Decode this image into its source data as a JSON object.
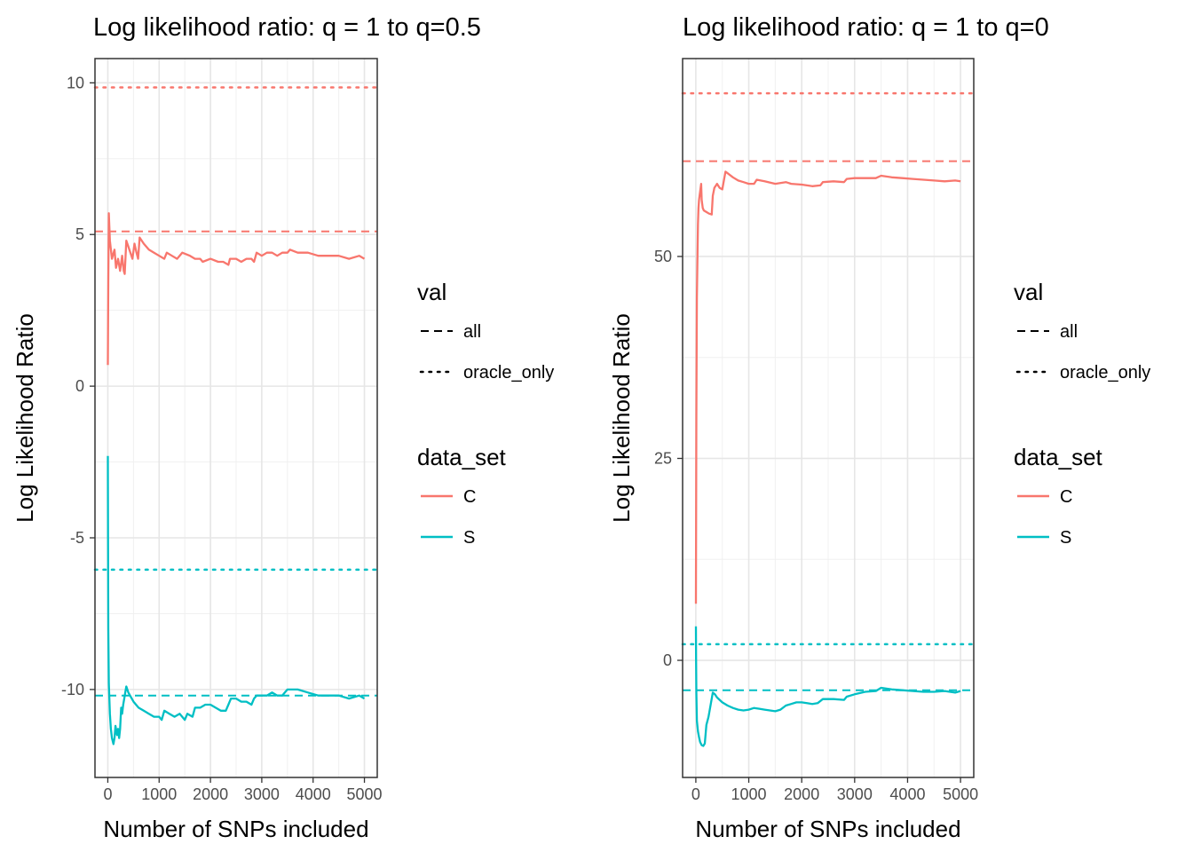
{
  "chart_data": [
    {
      "type": "line",
      "title": "Log likelihood ratio: q = 1 to q=0.5",
      "xlabel": "Number of SNPs included",
      "ylabel": "Log Likelihood Ratio",
      "xlim": [
        -250,
        5250
      ],
      "ylim": [
        -12.9,
        10.8
      ],
      "xticks": [
        0,
        1000,
        2000,
        3000,
        4000,
        5000
      ],
      "xtick_labels": [
        "0",
        "1000",
        "2000",
        "3000",
        "4000",
        "5000"
      ],
      "yticks": [
        -10,
        -5,
        0,
        5,
        10
      ],
      "ytick_labels": [
        "-10",
        "-5",
        "0",
        "5",
        "10"
      ],
      "grid": true,
      "legend_position": "right",
      "series": [
        {
          "name": "C",
          "color": "#F8766D",
          "points": [
            [
              1,
              0.7
            ],
            [
              10,
              3.5
            ],
            [
              20,
              5.7
            ],
            [
              40,
              4.8
            ],
            [
              80,
              4.2
            ],
            [
              130,
              4.5
            ],
            [
              160,
              3.9
            ],
            [
              200,
              4.2
            ],
            [
              240,
              3.8
            ],
            [
              280,
              4.3
            ],
            [
              310,
              3.8
            ],
            [
              330,
              3.7
            ],
            [
              360,
              4.8
            ],
            [
              400,
              4.6
            ],
            [
              440,
              4.4
            ],
            [
              480,
              4.2
            ],
            [
              520,
              4.7
            ],
            [
              560,
              4.4
            ],
            [
              590,
              4.2
            ],
            [
              620,
              4.9
            ],
            [
              700,
              4.7
            ],
            [
              800,
              4.5
            ],
            [
              900,
              4.4
            ],
            [
              1000,
              4.3
            ],
            [
              1100,
              4.2
            ],
            [
              1150,
              4.4
            ],
            [
              1250,
              4.3
            ],
            [
              1350,
              4.2
            ],
            [
              1450,
              4.4
            ],
            [
              1600,
              4.3
            ],
            [
              1700,
              4.2
            ],
            [
              1800,
              4.2
            ],
            [
              1850,
              4.1
            ],
            [
              2000,
              4.2
            ],
            [
              2150,
              4.1
            ],
            [
              2250,
              4.1
            ],
            [
              2350,
              4.0
            ],
            [
              2380,
              4.2
            ],
            [
              2500,
              4.2
            ],
            [
              2600,
              4.1
            ],
            [
              2700,
              4.2
            ],
            [
              2800,
              4.2
            ],
            [
              2850,
              4.1
            ],
            [
              2900,
              4.4
            ],
            [
              3000,
              4.3
            ],
            [
              3100,
              4.4
            ],
            [
              3200,
              4.4
            ],
            [
              3300,
              4.3
            ],
            [
              3400,
              4.4
            ],
            [
              3500,
              4.4
            ],
            [
              3550,
              4.5
            ],
            [
              3700,
              4.4
            ],
            [
              3900,
              4.4
            ],
            [
              4100,
              4.3
            ],
            [
              4300,
              4.3
            ],
            [
              4500,
              4.3
            ],
            [
              4700,
              4.2
            ],
            [
              4900,
              4.3
            ],
            [
              5000,
              4.2
            ]
          ]
        },
        {
          "name": "S",
          "color": "#00BFC4",
          "points": [
            [
              1,
              -2.3
            ],
            [
              5,
              -5.0
            ],
            [
              10,
              -8.0
            ],
            [
              20,
              -9.8
            ],
            [
              40,
              -10.8
            ],
            [
              60,
              -11.3
            ],
            [
              80,
              -11.6
            ],
            [
              110,
              -11.8
            ],
            [
              130,
              -11.6
            ],
            [
              150,
              -11.2
            ],
            [
              180,
              -11.5
            ],
            [
              200,
              -11.3
            ],
            [
              220,
              -11.6
            ],
            [
              240,
              -11.3
            ],
            [
              260,
              -10.6
            ],
            [
              280,
              -10.8
            ],
            [
              300,
              -10.5
            ],
            [
              320,
              -10.3
            ],
            [
              340,
              -10.1
            ],
            [
              360,
              -9.9
            ],
            [
              400,
              -10.1
            ],
            [
              500,
              -10.4
            ],
            [
              600,
              -10.6
            ],
            [
              700,
              -10.7
            ],
            [
              800,
              -10.8
            ],
            [
              900,
              -10.9
            ],
            [
              1000,
              -10.9
            ],
            [
              1050,
              -11.0
            ],
            [
              1100,
              -10.7
            ],
            [
              1200,
              -10.8
            ],
            [
              1300,
              -10.9
            ],
            [
              1400,
              -10.8
            ],
            [
              1500,
              -11.0
            ],
            [
              1550,
              -10.8
            ],
            [
              1650,
              -10.9
            ],
            [
              1700,
              -10.6
            ],
            [
              1800,
              -10.6
            ],
            [
              1900,
              -10.5
            ],
            [
              2000,
              -10.5
            ],
            [
              2100,
              -10.6
            ],
            [
              2200,
              -10.7
            ],
            [
              2300,
              -10.7
            ],
            [
              2350,
              -10.5
            ],
            [
              2400,
              -10.3
            ],
            [
              2500,
              -10.3
            ],
            [
              2600,
              -10.4
            ],
            [
              2700,
              -10.4
            ],
            [
              2800,
              -10.5
            ],
            [
              2850,
              -10.3
            ],
            [
              2900,
              -10.2
            ],
            [
              3000,
              -10.2
            ],
            [
              3100,
              -10.2
            ],
            [
              3200,
              -10.1
            ],
            [
              3300,
              -10.2
            ],
            [
              3400,
              -10.2
            ],
            [
              3450,
              -10.1
            ],
            [
              3500,
              -10.0
            ],
            [
              3700,
              -10.0
            ],
            [
              3900,
              -10.1
            ],
            [
              4100,
              -10.2
            ],
            [
              4300,
              -10.2
            ],
            [
              4500,
              -10.2
            ],
            [
              4700,
              -10.3
            ],
            [
              4900,
              -10.2
            ],
            [
              5000,
              -10.3
            ]
          ]
        }
      ],
      "hlines": [
        {
          "series": "C",
          "val": "all",
          "y": 5.1,
          "color": "#F8766D",
          "linetype": "dashed"
        },
        {
          "series": "C",
          "val": "oracle_only",
          "y": 9.85,
          "color": "#F8766D",
          "linetype": "dotted"
        },
        {
          "series": "S",
          "val": "all",
          "y": -10.2,
          "color": "#00BFC4",
          "linetype": "dashed"
        },
        {
          "series": "S",
          "val": "oracle_only",
          "y": -6.05,
          "color": "#00BFC4",
          "linetype": "dotted"
        }
      ]
    },
    {
      "type": "line",
      "title": "Log likelihood ratio: q = 1 to q=0",
      "xlabel": "Number of SNPs included",
      "ylabel": "Log Likelihood Ratio",
      "xlim": [
        -250,
        5250
      ],
      "ylim": [
        -14.5,
        74.5
      ],
      "xticks": [
        0,
        1000,
        2000,
        3000,
        4000,
        5000
      ],
      "xtick_labels": [
        "0",
        "1000",
        "2000",
        "3000",
        "4000",
        "5000"
      ],
      "yticks": [
        0,
        25,
        50
      ],
      "ytick_labels": [
        "0",
        "25",
        "50"
      ],
      "grid": true,
      "legend_position": "right",
      "series": [
        {
          "name": "C",
          "color": "#F8766D",
          "points": [
            [
              1,
              7.0
            ],
            [
              10,
              30
            ],
            [
              20,
              45
            ],
            [
              40,
              54
            ],
            [
              50,
              56
            ],
            [
              60,
              57
            ],
            [
              80,
              58
            ],
            [
              100,
              59
            ],
            [
              110,
              57
            ],
            [
              130,
              56
            ],
            [
              150,
              55.7
            ],
            [
              200,
              55.5
            ],
            [
              250,
              55.3
            ],
            [
              300,
              55.2
            ],
            [
              320,
              57.5
            ],
            [
              350,
              58.5
            ],
            [
              400,
              59
            ],
            [
              450,
              58.5
            ],
            [
              500,
              58.3
            ],
            [
              560,
              60.5
            ],
            [
              600,
              60.3
            ],
            [
              700,
              59.8
            ],
            [
              800,
              59.4
            ],
            [
              900,
              59.2
            ],
            [
              1000,
              59.0
            ],
            [
              1100,
              59.0
            ],
            [
              1150,
              59.5
            ],
            [
              1300,
              59.3
            ],
            [
              1500,
              59.0
            ],
            [
              1700,
              59.2
            ],
            [
              1800,
              59.0
            ],
            [
              2000,
              58.9
            ],
            [
              2200,
              58.7
            ],
            [
              2350,
              58.8
            ],
            [
              2400,
              59.2
            ],
            [
              2600,
              59.3
            ],
            [
              2800,
              59.2
            ],
            [
              2850,
              59.6
            ],
            [
              3000,
              59.7
            ],
            [
              3200,
              59.7
            ],
            [
              3400,
              59.7
            ],
            [
              3500,
              60.0
            ],
            [
              3700,
              59.8
            ],
            [
              3900,
              59.7
            ],
            [
              4100,
              59.6
            ],
            [
              4300,
              59.5
            ],
            [
              4500,
              59.4
            ],
            [
              4700,
              59.3
            ],
            [
              4900,
              59.4
            ],
            [
              5000,
              59.3
            ]
          ]
        },
        {
          "name": "S",
          "color": "#00BFC4",
          "points": [
            [
              1,
              4.2
            ],
            [
              5,
              0
            ],
            [
              10,
              -4
            ],
            [
              20,
              -7.5
            ],
            [
              40,
              -8.8
            ],
            [
              60,
              -9.5
            ],
            [
              80,
              -10.1
            ],
            [
              110,
              -10.5
            ],
            [
              140,
              -10.6
            ],
            [
              170,
              -10.3
            ],
            [
              200,
              -8.0
            ],
            [
              240,
              -7.0
            ],
            [
              280,
              -5.5
            ],
            [
              320,
              -4.0
            ],
            [
              360,
              -4.2
            ],
            [
              400,
              -4.6
            ],
            [
              500,
              -5.2
            ],
            [
              600,
              -5.6
            ],
            [
              700,
              -5.9
            ],
            [
              800,
              -6.1
            ],
            [
              900,
              -6.2
            ],
            [
              1000,
              -6.1
            ],
            [
              1100,
              -5.9
            ],
            [
              1200,
              -6.0
            ],
            [
              1300,
              -6.1
            ],
            [
              1400,
              -6.2
            ],
            [
              1500,
              -6.3
            ],
            [
              1600,
              -6.1
            ],
            [
              1700,
              -5.6
            ],
            [
              1800,
              -5.4
            ],
            [
              1900,
              -5.2
            ],
            [
              2000,
              -5.2
            ],
            [
              2100,
              -5.3
            ],
            [
              2200,
              -5.4
            ],
            [
              2300,
              -5.3
            ],
            [
              2400,
              -4.8
            ],
            [
              2600,
              -4.8
            ],
            [
              2800,
              -4.9
            ],
            [
              2850,
              -4.5
            ],
            [
              3000,
              -4.2
            ],
            [
              3200,
              -3.9
            ],
            [
              3400,
              -3.8
            ],
            [
              3500,
              -3.4
            ],
            [
              3700,
              -3.6
            ],
            [
              3900,
              -3.7
            ],
            [
              4100,
              -3.8
            ],
            [
              4300,
              -3.9
            ],
            [
              4500,
              -3.9
            ],
            [
              4700,
              -3.8
            ],
            [
              4900,
              -4.0
            ],
            [
              5000,
              -3.8
            ]
          ]
        }
      ],
      "hlines": [
        {
          "series": "C",
          "val": "all",
          "y": 61.8,
          "color": "#F8766D",
          "linetype": "dashed"
        },
        {
          "series": "C",
          "val": "oracle_only",
          "y": 70.2,
          "color": "#F8766D",
          "linetype": "dotted"
        },
        {
          "series": "S",
          "val": "all",
          "y": -3.7,
          "color": "#00BFC4",
          "linetype": "dashed"
        },
        {
          "series": "S",
          "val": "oracle_only",
          "y": 2.0,
          "color": "#00BFC4",
          "linetype": "dotted"
        }
      ]
    }
  ],
  "legend": {
    "val_title": "val",
    "val_items": [
      {
        "label": "all",
        "linetype": "dashed"
      },
      {
        "label": "oracle_only",
        "linetype": "dotted"
      }
    ],
    "data_set_title": "data_set",
    "data_set_items": [
      {
        "label": "C",
        "color": "#F8766D"
      },
      {
        "label": "S",
        "color": "#00BFC4"
      }
    ]
  }
}
